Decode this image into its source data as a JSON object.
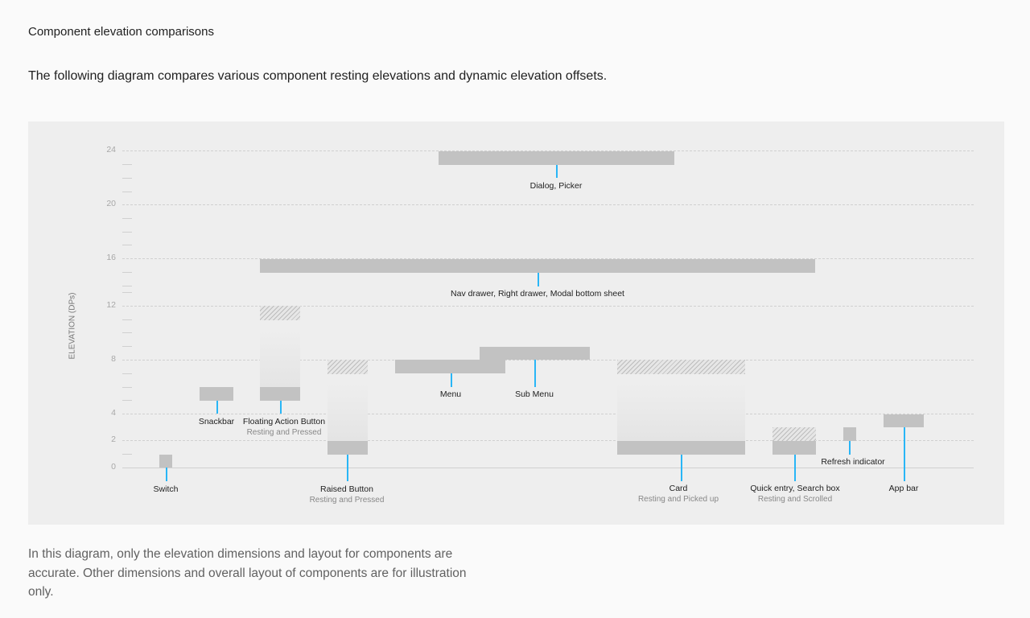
{
  "heading": "Component elevation comparisons",
  "intro": "The following diagram compares various component resting elevations and dynamic elevation offsets.",
  "diagram": {
    "y_axis_label": "ELEVATION (DPs)",
    "ticks": [
      "24",
      "20",
      "16",
      "12",
      "8",
      "4",
      "2",
      "0"
    ],
    "components": [
      {
        "label": "Switch",
        "resting": 1
      },
      {
        "label": "Snackbar",
        "resting": 6
      },
      {
        "label": "Floating Action Button",
        "sub": "Resting and Pressed",
        "resting": 6,
        "pressed": 12
      },
      {
        "label": "Raised Button",
        "sub": "Resting and Pressed",
        "resting": 2,
        "pressed": 8
      },
      {
        "label": "Menu",
        "resting": 8
      },
      {
        "label": "Sub Menu",
        "resting": 9
      },
      {
        "label": "Nav drawer, Right drawer, Modal bottom sheet",
        "resting": 16
      },
      {
        "label": "Dialog, Picker",
        "resting": 24
      },
      {
        "label": "Card",
        "sub": "Resting and Picked up",
        "resting": 2,
        "picked_up": 8
      },
      {
        "label": "Quick entry, Search box",
        "sub": "Resting and Scrolled",
        "resting": 2,
        "scrolled": 3
      },
      {
        "label": "Refresh indicator",
        "resting": 3
      },
      {
        "label": "App bar",
        "resting": 4
      }
    ],
    "leader_color": "#29b6f6"
  },
  "footnote": "In this diagram, only the elevation dimensions and layout for components are accurate. Other dimensions and overall layout of components are for illustration only."
}
